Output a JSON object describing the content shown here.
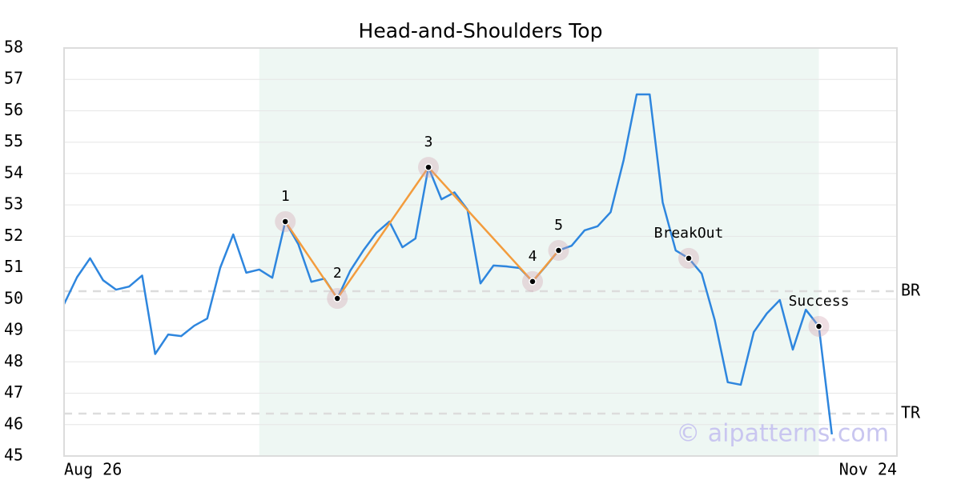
{
  "chart_data": {
    "type": "line",
    "title": "Head-and-Shoulders Top",
    "x": [
      0,
      1,
      2,
      3,
      4,
      5,
      6,
      7,
      8,
      9,
      10,
      11,
      12,
      13,
      14,
      15,
      16,
      17,
      18,
      19,
      20,
      21,
      22,
      23,
      24,
      25,
      26,
      27,
      28,
      29,
      30,
      31,
      32,
      33,
      34,
      35,
      36,
      37,
      38,
      39,
      40,
      41,
      42,
      43,
      44,
      45,
      46,
      47,
      48,
      49,
      50,
      51,
      52,
      53,
      54,
      55,
      56,
      57,
      58,
      59
    ],
    "series": [
      {
        "color": "#2e86de",
        "values": [
          49.84,
          50.7,
          51.3,
          50.6,
          50.3,
          50.4,
          50.75,
          48.25,
          48.87,
          48.82,
          49.15,
          49.38,
          51.0,
          52.06,
          50.84,
          50.94,
          50.68,
          52.47,
          51.75,
          50.55,
          50.65,
          50.02,
          50.91,
          51.55,
          52.11,
          52.47,
          51.65,
          51.93,
          54.2,
          53.18,
          53.4,
          52.85,
          50.5,
          51.07,
          51.04,
          50.99,
          50.56,
          51.04,
          51.55,
          51.7,
          52.19,
          52.32,
          52.77,
          54.43,
          56.52,
          56.52,
          53.08,
          51.55,
          51.3,
          50.81,
          49.33,
          47.35,
          47.27,
          48.95,
          49.54,
          49.97,
          48.39,
          49.66,
          49.13,
          45.69
        ]
      }
    ],
    "xlim": [
      0,
      64
    ],
    "xticks": [
      {
        "value": 0,
        "label": "Aug 26"
      },
      {
        "value": 64,
        "label": "Nov 24"
      }
    ],
    "ylim": [
      45,
      58
    ],
    "yticks": [
      45,
      46,
      47,
      48,
      49,
      50,
      51,
      52,
      53,
      54,
      55,
      56,
      57,
      58
    ],
    "grid": true,
    "shaded_range": [
      15,
      58
    ],
    "pattern_color": "#f39c3d",
    "pattern_points": [
      {
        "label": "1",
        "x": 17,
        "y": 52.47
      },
      {
        "label": "2",
        "x": 21,
        "y": 50.02
      },
      {
        "label": "3",
        "x": 28,
        "y": 54.2
      },
      {
        "label": "4",
        "x": 36,
        "y": 50.56
      },
      {
        "label": "5",
        "x": 38,
        "y": 51.55
      }
    ],
    "events": [
      {
        "label": "BreakOut",
        "x": 48,
        "y": 51.3
      },
      {
        "label": "Success",
        "x": 58,
        "y": 49.13
      }
    ],
    "levels": [
      {
        "label": "BR",
        "value": 50.25
      },
      {
        "label": "TR",
        "value": 46.35
      }
    ],
    "watermark": "© aipatterns.com"
  }
}
